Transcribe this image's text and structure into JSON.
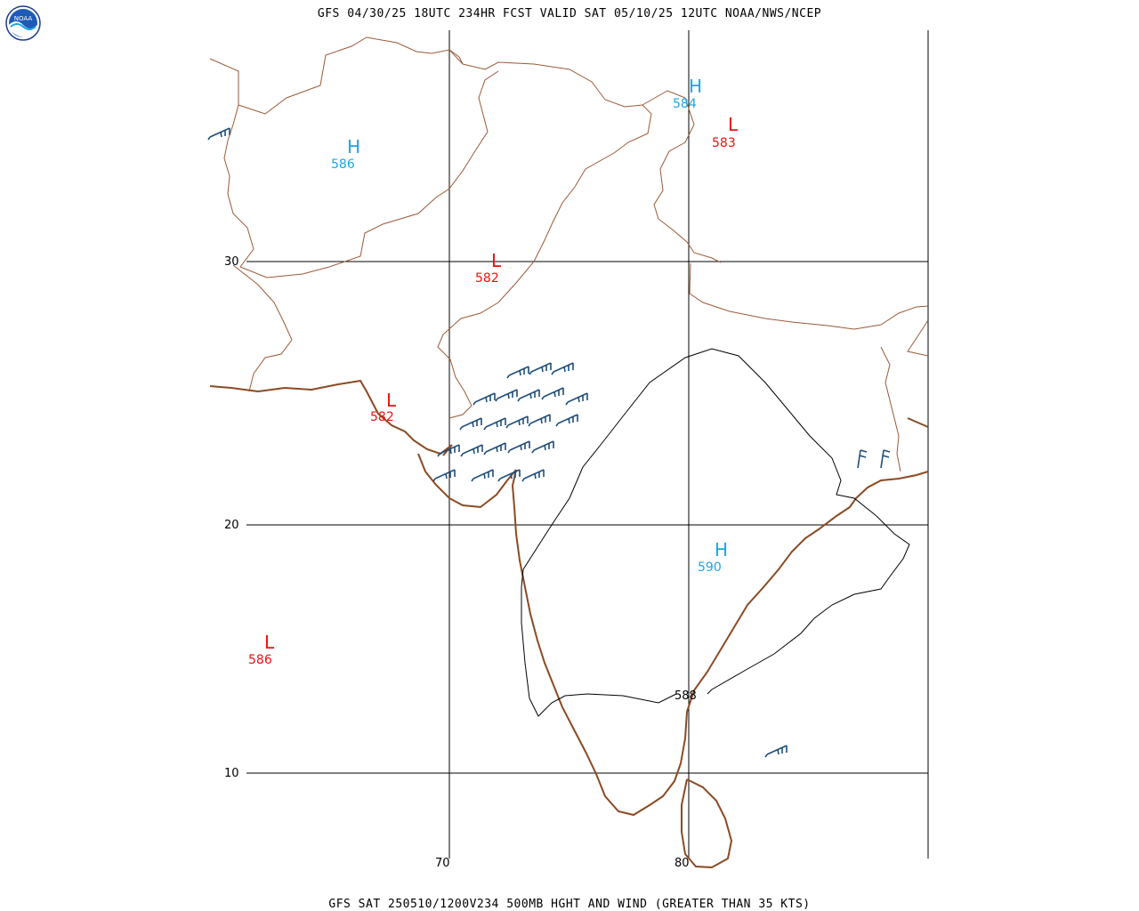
{
  "header": {
    "title": "GFS 04/30/25 18UTC 234HR FCST VALID SAT 05/10/25 12UTC NOAA/NWS/NCEP"
  },
  "footer": {
    "caption": "GFS SAT 250510/1200V234 500MB HGHT AND WIND (GREATER THAN 35 KTS)"
  },
  "logo": {
    "icon": "noaa-logo",
    "text": "NOAA"
  },
  "colors": {
    "high": "#19a8e6",
    "low": "#ee1111",
    "coast": "#8b4a22",
    "border": "#9a5a38",
    "contour": "#000000",
    "barb": "#1f4e7a",
    "grid": "#000000"
  },
  "grid": {
    "lat_labels": [
      "30",
      "20",
      "10"
    ],
    "lon_labels": [
      "70",
      "80"
    ]
  },
  "centers": {
    "highs": [
      {
        "letter": "H",
        "value": "586"
      },
      {
        "letter": "H",
        "value": "584"
      },
      {
        "letter": "H",
        "value": "590"
      }
    ],
    "lows": [
      {
        "letter": "L",
        "value": "583"
      },
      {
        "letter": "L",
        "value": "582"
      },
      {
        "letter": "L",
        "value": "582"
      },
      {
        "letter": "L",
        "value": "586"
      }
    ]
  },
  "contour_label": "588",
  "wind_barbs": {
    "icon": "wind-barb-icon",
    "direction": "westerly",
    "threshold_kts": 35
  }
}
